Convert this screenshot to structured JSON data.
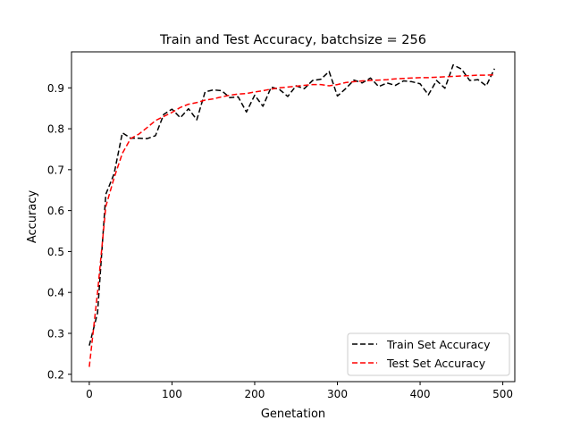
{
  "chart_data": {
    "type": "line",
    "title": "Train and Test Accuracy, batchsize = 256",
    "xlabel": "Genetation",
    "ylabel": "Accuracy",
    "xlim": [
      -21.5,
      514.5
    ],
    "ylim": [
      0.182,
      0.988
    ],
    "xticks": [
      0,
      100,
      200,
      300,
      400,
      500
    ],
    "yticks": [
      0.2,
      0.3,
      0.4,
      0.5,
      0.6,
      0.7,
      0.8,
      0.9
    ],
    "ytick_labels": [
      "0.2",
      "0.3",
      "0.4",
      "0.5",
      "0.6",
      "0.7",
      "0.8",
      "0.9"
    ],
    "grid": false,
    "legend_position": "lower-right",
    "x": [
      0,
      10,
      20,
      30,
      40,
      50,
      60,
      70,
      80,
      90,
      100,
      110,
      120,
      130,
      140,
      150,
      160,
      170,
      180,
      190,
      200,
      210,
      220,
      230,
      240,
      250,
      260,
      270,
      280,
      290,
      300,
      310,
      320,
      330,
      340,
      350,
      360,
      370,
      380,
      390,
      400,
      410,
      420,
      430,
      440,
      450,
      460,
      470,
      480,
      490
    ],
    "series": [
      {
        "name": "Train Set Accuracy",
        "color": "#000000",
        "style": "dashed",
        "values": [
          0.27,
          0.35,
          0.64,
          0.69,
          0.79,
          0.777,
          0.777,
          0.776,
          0.783,
          0.835,
          0.848,
          0.827,
          0.849,
          0.822,
          0.89,
          0.895,
          0.893,
          0.876,
          0.878,
          0.841,
          0.882,
          0.855,
          0.902,
          0.896,
          0.879,
          0.905,
          0.898,
          0.918,
          0.921,
          0.94,
          0.88,
          0.898,
          0.919,
          0.912,
          0.924,
          0.903,
          0.912,
          0.906,
          0.917,
          0.915,
          0.91,
          0.883,
          0.918,
          0.899,
          0.956,
          0.946,
          0.918,
          0.92,
          0.905,
          0.947
        ]
      },
      {
        "name": "Test Set Accuracy",
        "color": "#ff0000",
        "style": "dashed",
        "values": [
          0.218,
          0.4,
          0.61,
          0.68,
          0.74,
          0.776,
          0.787,
          0.803,
          0.82,
          0.83,
          0.84,
          0.852,
          0.86,
          0.864,
          0.87,
          0.873,
          0.878,
          0.882,
          0.885,
          0.886,
          0.89,
          0.893,
          0.897,
          0.9,
          0.902,
          0.904,
          0.906,
          0.908,
          0.908,
          0.905,
          0.908,
          0.913,
          0.915,
          0.917,
          0.918,
          0.919,
          0.92,
          0.922,
          0.923,
          0.924,
          0.925,
          0.925,
          0.926,
          0.927,
          0.928,
          0.929,
          0.93,
          0.931,
          0.931,
          0.932
        ]
      }
    ]
  }
}
